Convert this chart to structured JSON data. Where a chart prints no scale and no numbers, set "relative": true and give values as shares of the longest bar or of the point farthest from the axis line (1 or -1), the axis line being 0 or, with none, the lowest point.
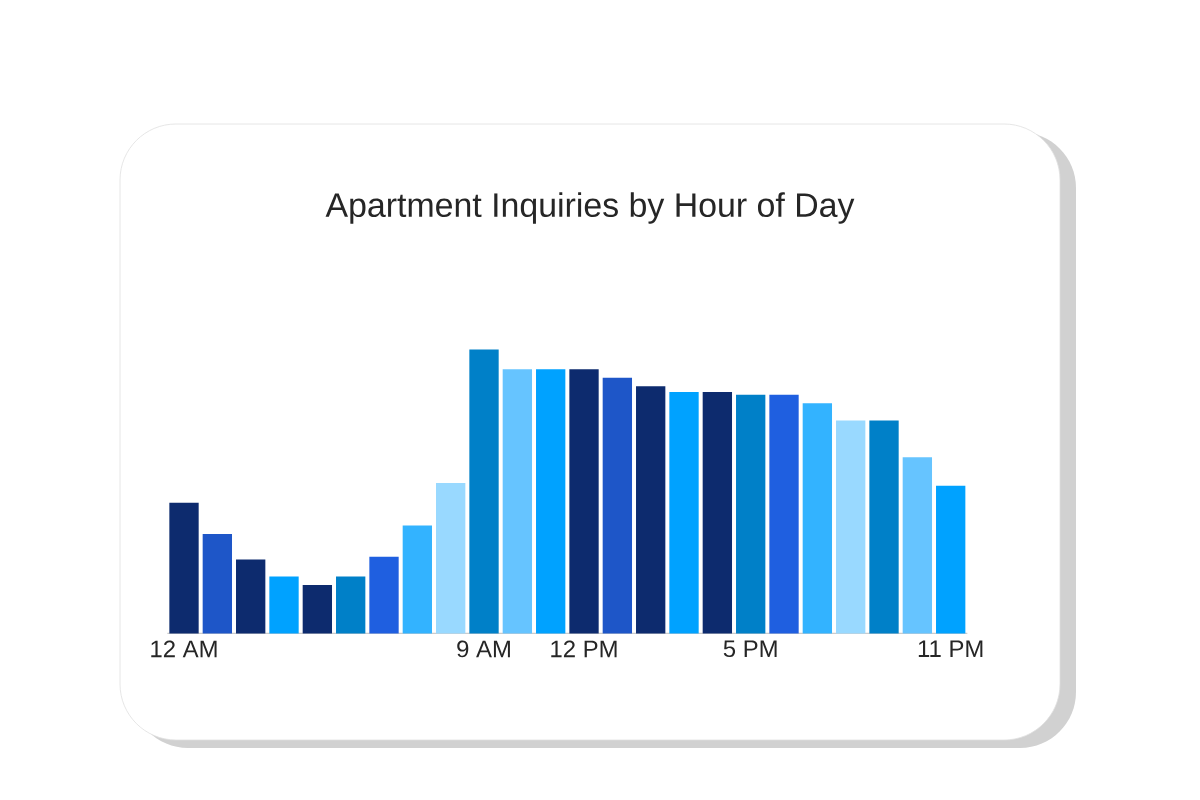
{
  "chart_data": {
    "type": "bar",
    "title": "Apartment Inquiries by Hour of Day",
    "relative": true,
    "categories": [
      "12 AM",
      null,
      null,
      null,
      null,
      null,
      null,
      null,
      null,
      "9 AM",
      null,
      null,
      "12 PM",
      null,
      null,
      null,
      null,
      "5 PM",
      null,
      null,
      null,
      null,
      null,
      "11 PM"
    ],
    "values": [
      0.46,
      0.35,
      0.26,
      0.2,
      0.17,
      0.2,
      0.27,
      0.38,
      0.53,
      1,
      0.93,
      0.93,
      0.93,
      0.9,
      0.87,
      0.85,
      0.85,
      0.84,
      0.84,
      0.81,
      0.75,
      0.75,
      0.62,
      0.52
    ],
    "colors": [
      "#0d2b6e",
      "#1e56c8",
      "#0d2b6e",
      "#00a2ff",
      "#0d2b6e",
      "#0080c8",
      "#1f5fe0",
      "#33b3ff",
      "#99d9ff",
      "#0080c8",
      "#66c4ff",
      "#00a2ff",
      "#0d2b6e",
      "#1e56c8",
      "#0d2b6e",
      "#00a2ff",
      "#0d2b6e",
      "#0080c8",
      "#1f5fe0",
      "#33b3ff",
      "#99d9ff",
      "#0080c8",
      "#66c4ff",
      "#00a2ff"
    ]
  }
}
